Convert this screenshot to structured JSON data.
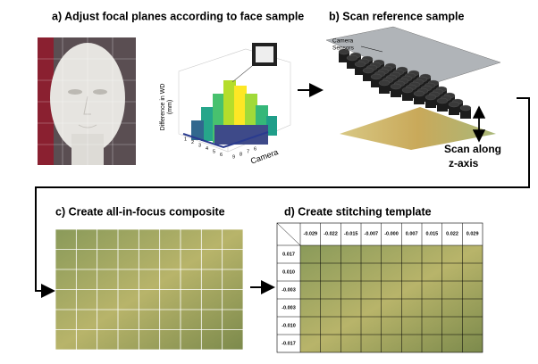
{
  "panels": {
    "a": {
      "title": "a) Adjust focal planes according to face sample",
      "z_label": "Difference in WD",
      "z_unit": "(mm)",
      "camera_label": "Camera",
      "x_ticks": [
        "1",
        "2",
        "3",
        "4",
        "5",
        "6"
      ],
      "y_ticks": [
        "9",
        "8",
        "7",
        "6"
      ]
    },
    "b": {
      "title": "b) Scan reference sample",
      "sensors_line1": "Camera",
      "sensors_line2": "Sensors",
      "scan_line1": "Scan along",
      "scan_line2": "z-axis"
    },
    "c": {
      "title": "c) Create all-in-focus composite"
    },
    "d": {
      "title": "d) Create stitching template",
      "columns": [
        "-0.029",
        "-0.022",
        "-0.015",
        "-0.007",
        "-0.000",
        "0.007",
        "0.015",
        "0.022",
        "0.029"
      ],
      "rows": [
        "0.017",
        "0.010",
        "-0.003",
        "-0.003",
        "-0.010",
        "-0.017"
      ]
    }
  }
}
